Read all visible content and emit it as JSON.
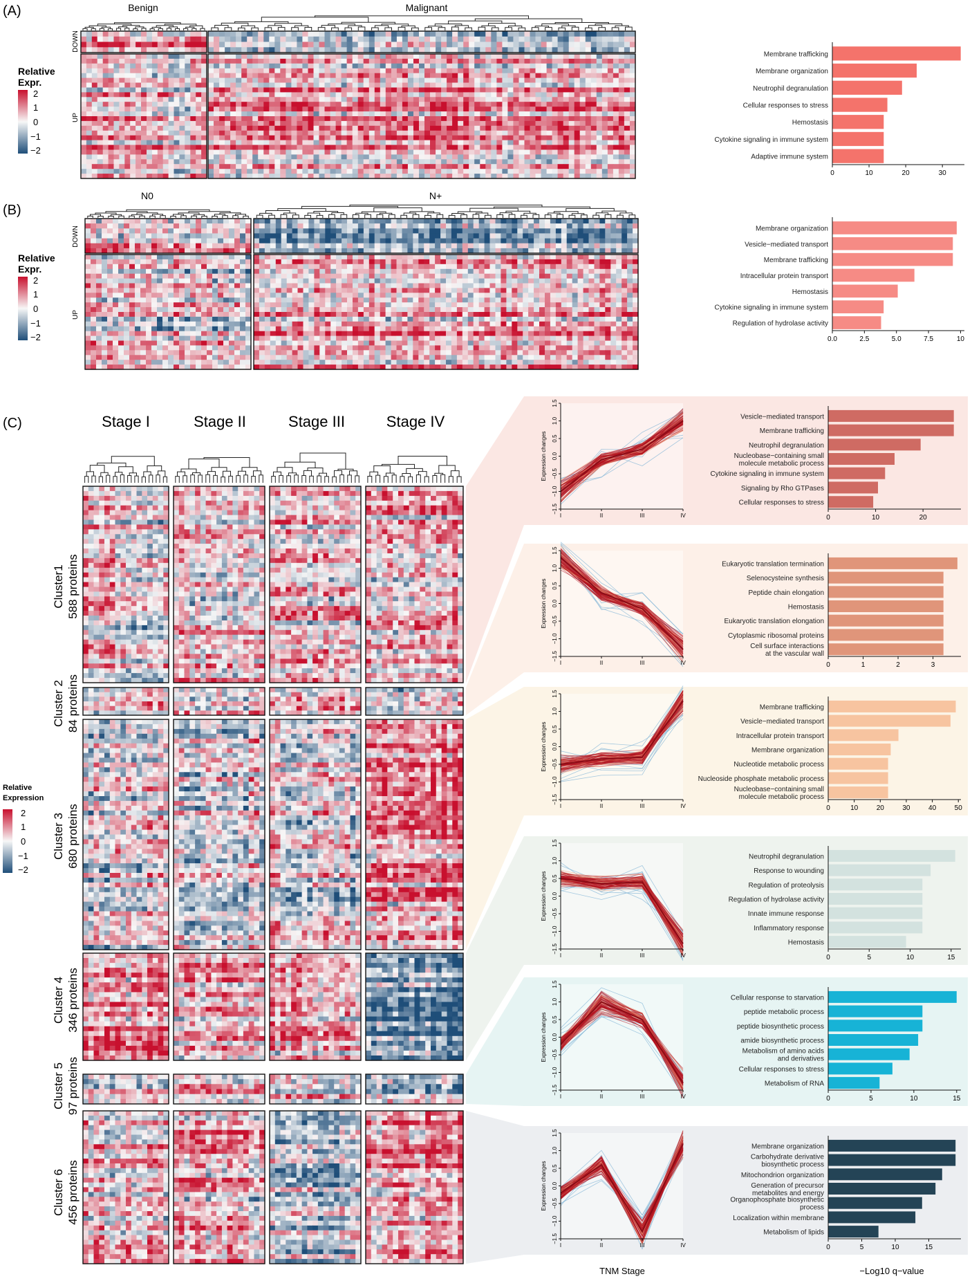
{
  "panel_labels": {
    "a": "(A)",
    "b": "(B)",
    "c": "(C)"
  },
  "legend_ab": {
    "title_line1": "Relative",
    "title_line2": "Expr.",
    "ticks": [
      "2",
      "1",
      "0",
      "−1",
      "−2"
    ]
  },
  "legend_c": {
    "title_line1": "Relative",
    "title_line2": "Expression",
    "ticks": [
      "2",
      "1",
      "0",
      "−1",
      "−2"
    ]
  },
  "heatmap_a": {
    "group_labels": [
      "Benign",
      "Malignant"
    ],
    "row_labels": [
      "DOWN",
      "UP"
    ]
  },
  "heatmap_b": {
    "group_labels": [
      "N0",
      "N+"
    ],
    "row_labels": [
      "DOWN",
      "UP"
    ]
  },
  "heatmap_c": {
    "stage_labels": [
      "Stage I",
      "Stage II",
      "Stage III",
      "Stage IV"
    ],
    "clusters": [
      {
        "line1": "Cluster1",
        "line2": "588 proteins"
      },
      {
        "line1": "Cluster 2",
        "line2": "84 proteins"
      },
      {
        "line1": "Cluster 3",
        "line2": "680 proteins"
      },
      {
        "line1": "Cluster 4",
        "line2": "346 proteins"
      },
      {
        "line1": "Cluster 5",
        "line2": "97 proteins"
      },
      {
        "line1": "Cluster 6",
        "line2": "456 proteins"
      }
    ]
  },
  "line_axis": {
    "ylabel": "Expression changes",
    "yticks": [
      "1.5",
      "1.0",
      "0.5",
      "0.0",
      "−0.5",
      "−1.0",
      "−1.5"
    ],
    "xticks": [
      "I",
      "II",
      "III",
      "IV"
    ],
    "xlabel": "TNM Stage"
  },
  "bar_xlabel": "−Log10 q−value",
  "colors": {
    "heat_high": "#c8102e",
    "heat_mid": "#f7f7f7",
    "heat_low": "#1f4e79",
    "bar_a": "#f4736b",
    "bar_b": "#f68b85",
    "line_red": "#b3131f",
    "line_blue": "#7fb3d5",
    "cluster_bg": [
      "#fbe7e3",
      "#fdf0e8",
      "#fcf4e6",
      "#eef3ee",
      "#e6f4f3",
      "#eceef1"
    ],
    "cluster_bar": [
      "#cf6b63",
      "#e0957a",
      "#f7c4a0",
      "#d3e2df",
      "#17b3d6",
      "#244456"
    ]
  },
  "chart_data": [
    {
      "type": "bar",
      "orientation": "horizontal",
      "panel": "A",
      "categories": [
        "Membrane trafficking",
        "Membrane organization",
        "Neutrophil degranulation",
        "Cellular responses to stress",
        "Hemostasis",
        "Cytokine signaling in immune system",
        "Adaptive immune system"
      ],
      "values": [
        35,
        23,
        19,
        15,
        14,
        14,
        14
      ],
      "xlim": [
        0,
        36
      ],
      "xticks": [
        "0",
        "10",
        "20",
        "30"
      ]
    },
    {
      "type": "bar",
      "orientation": "horizontal",
      "panel": "B",
      "categories": [
        "Membrane organization",
        "Vesicle−mediated transport",
        "Membrane trafficking",
        "Intracellular protein transport",
        "Hemostasis",
        "Cytokine signaling in immune system",
        "Regulation of hydrolase activity"
      ],
      "values": [
        9.7,
        9.4,
        9.4,
        6.4,
        5.1,
        4.0,
        3.8
      ],
      "xlim": [
        0,
        10.3
      ],
      "xticks": [
        "0.0",
        "2.5",
        "5.0",
        "7.5",
        "10"
      ]
    },
    {
      "type": "line",
      "panel": "C",
      "cluster": "Cluster1",
      "x": [
        "I",
        "II",
        "III",
        "IV"
      ],
      "ylim": [
        -1.5,
        1.5
      ],
      "series": [
        {
          "values": [
            -1.0,
            -0.1,
            0.2,
            1.0
          ]
        }
      ]
    },
    {
      "type": "bar",
      "orientation": "horizontal",
      "panel": "C",
      "cluster": "Cluster1",
      "categories": [
        "Vesicle−mediated transport",
        "Membrane trafficking",
        "Neutrophil degranulation",
        "Nucleobase−containing small\nmolecule metabolic process",
        "Cytokine signaling in immune system",
        "Signaling by Rho GTPases",
        "Cellular responses to stress"
      ],
      "values": [
        26.5,
        26.5,
        19.5,
        14.0,
        12.0,
        10.5,
        9.5
      ],
      "xlim": [
        0,
        28
      ],
      "xticks": [
        "0",
        "10",
        "20"
      ]
    },
    {
      "type": "line",
      "panel": "C",
      "cluster": "Cluster 2",
      "x": [
        "I",
        "II",
        "III",
        "IV"
      ],
      "ylim": [
        -1.5,
        1.5
      ],
      "series": [
        {
          "values": [
            1.3,
            0.3,
            -0.15,
            -1.3
          ]
        }
      ]
    },
    {
      "type": "bar",
      "orientation": "horizontal",
      "panel": "C",
      "cluster": "Cluster 2",
      "categories": [
        "Eukaryotic translation termination",
        "Selenocysteine synthesis",
        "Peptide chain elongation",
        "Hemostasis",
        "Eukaryotic translation elongation",
        "Cytoplasmic ribosomal proteins",
        "Cell surface interactions\nat the vascular wall"
      ],
      "values": [
        3.7,
        3.3,
        3.3,
        3.3,
        3.3,
        3.3,
        3.3
      ],
      "xlim": [
        0,
        3.8
      ],
      "xticks": [
        "0",
        "1",
        "2",
        "3"
      ]
    },
    {
      "type": "line",
      "panel": "C",
      "cluster": "Cluster 3",
      "x": [
        "I",
        "II",
        "III",
        "IV"
      ],
      "ylim": [
        -1.5,
        1.5
      ],
      "series": [
        {
          "values": [
            -0.5,
            -0.35,
            -0.3,
            1.3
          ]
        }
      ]
    },
    {
      "type": "bar",
      "orientation": "horizontal",
      "panel": "C",
      "cluster": "Cluster 3",
      "categories": [
        "Membrane trafficking",
        "Vesicle−mediated transport",
        "Intracellular protein transport",
        "Membrane organization",
        "Nucleotide metabolic process",
        "Nucleoside phosphate metabolic process",
        "Nucleobase−containing small\nmolecule metabolic process"
      ],
      "values": [
        49,
        47,
        27,
        24,
        23,
        23,
        23
      ],
      "xlim": [
        0,
        51
      ],
      "xticks": [
        "0",
        "10",
        "20",
        "30",
        "40",
        "50"
      ]
    },
    {
      "type": "line",
      "panel": "C",
      "cluster": "Cluster 4",
      "x": [
        "I",
        "II",
        "III",
        "IV"
      ],
      "ylim": [
        -1.5,
        1.5
      ],
      "series": [
        {
          "values": [
            0.5,
            0.35,
            0.4,
            -1.35
          ]
        }
      ]
    },
    {
      "type": "bar",
      "orientation": "horizontal",
      "panel": "C",
      "cluster": "Cluster 4",
      "categories": [
        "Neutrophil degranulation",
        "Response to wounding",
        "Regulation of proteolysis",
        "Regulation of hydrolase activity",
        "Innate immune response",
        "Inflammatory response",
        "Hemostasis"
      ],
      "values": [
        15.5,
        12.5,
        11.5,
        11.5,
        11.5,
        11.5,
        9.5
      ],
      "xlim": [
        0,
        16.2
      ],
      "xticks": [
        "0",
        "5",
        "10",
        "15"
      ]
    },
    {
      "type": "line",
      "panel": "C",
      "cluster": "Cluster 5",
      "x": [
        "I",
        "II",
        "III",
        "IV"
      ],
      "ylim": [
        -1.5,
        1.5
      ],
      "series": [
        {
          "values": [
            -0.2,
            1.0,
            0.5,
            -1.3
          ]
        }
      ]
    },
    {
      "type": "bar",
      "orientation": "horizontal",
      "panel": "C",
      "cluster": "Cluster 5",
      "categories": [
        "Cellular response to starvation",
        "peptide metabolic process",
        "peptide biosynthetic process",
        "amide biosynthetic process",
        "Metabolism of amino acids\nand derivatives",
        "Cellular responses to stress",
        "Metabolism of RNA"
      ],
      "values": [
        15,
        11,
        11,
        10.5,
        9.5,
        7.5,
        6.0
      ],
      "xlim": [
        0,
        15.5
      ],
      "xticks": [
        "0",
        "5",
        "10",
        "15"
      ]
    },
    {
      "type": "line",
      "panel": "C",
      "cluster": "Cluster 6",
      "x": [
        "I",
        "II",
        "III",
        "IV"
      ],
      "ylim": [
        -1.5,
        1.5
      ],
      "series": [
        {
          "values": [
            -0.2,
            0.6,
            -1.3,
            1.2
          ]
        }
      ]
    },
    {
      "type": "bar",
      "orientation": "horizontal",
      "panel": "C",
      "cluster": "Cluster 6",
      "categories": [
        "Membrane organization",
        "Carbohydrate derivative\nbiosynthetic process",
        "Mitochondrion organization",
        "Generation of precursor\nmetabolites and energy",
        "Organophosphate biosynthetic\nprocess",
        "Localization within membrane",
        "Metabolism of lipids"
      ],
      "values": [
        19,
        19,
        17,
        16,
        14,
        13,
        7.5
      ],
      "xlim": [
        0,
        19.8
      ],
      "xticks": [
        "0",
        "5",
        "10",
        "15"
      ]
    }
  ]
}
